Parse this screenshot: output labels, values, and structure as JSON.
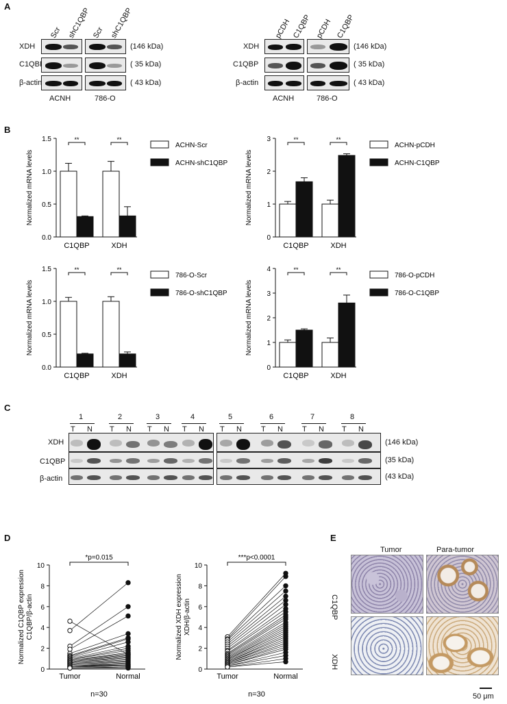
{
  "panels": {
    "A": "A",
    "B": "B",
    "C": "C",
    "D": "D",
    "E": "E"
  },
  "panelA": {
    "left": {
      "lanes": [
        "Scr",
        "shC1QBP",
        "Scr",
        "shC1QBP"
      ],
      "rows": [
        "XDH",
        "C1QBP",
        "β-actin"
      ],
      "sizes": [
        "(146 kDa)",
        "( 35 kDa)",
        "( 43 kDa)"
      ],
      "cells": [
        "ACNH",
        "786-O"
      ]
    },
    "right": {
      "lanes": [
        "pCDH",
        "C1QBP",
        "pCDH",
        "C1QBP"
      ],
      "rows": [
        "XDH",
        "C1QBP",
        "β-actin"
      ],
      "sizes": [
        "(146 kDa)",
        "( 35 kDa)",
        "( 43 kDa)"
      ],
      "cells": [
        "ACNH",
        "786-O"
      ]
    }
  },
  "chart_data": [
    {
      "type": "bar",
      "panel": "B",
      "ylabel": "Normalized mRNA levels",
      "categories": [
        "C1QBP",
        "XDH"
      ],
      "ylim": [
        0,
        1.5
      ],
      "yticks": [
        "0.0",
        "0.5",
        "1.0",
        "1.5"
      ],
      "series": [
        {
          "name": "ACHN-Scr",
          "values": [
            1.0,
            1.0
          ],
          "err": [
            0.12,
            0.15
          ]
        },
        {
          "name": "ACHN-shC1QBP",
          "values": [
            0.31,
            0.32
          ],
          "err": [
            0.01,
            0.14
          ]
        }
      ],
      "sig": [
        "**",
        "**"
      ]
    },
    {
      "type": "bar",
      "panel": "B",
      "ylabel": "Normalized mRNA levels",
      "categories": [
        "C1QBP",
        "XDH"
      ],
      "ylim": [
        0,
        3
      ],
      "yticks": [
        "0",
        "1",
        "2",
        "3"
      ],
      "series": [
        {
          "name": "ACHN-pCDH",
          "values": [
            1.0,
            1.0
          ],
          "err": [
            0.08,
            0.12
          ]
        },
        {
          "name": "ACHN-C1QBP",
          "values": [
            1.68,
            2.48
          ],
          "err": [
            0.12,
            0.05
          ]
        }
      ],
      "sig": [
        "**",
        "**"
      ]
    },
    {
      "type": "bar",
      "panel": "B",
      "ylabel": "Normalized mRNA levels",
      "categories": [
        "C1QBP",
        "XDH"
      ],
      "ylim": [
        0,
        1.5
      ],
      "yticks": [
        "0.0",
        "0.5",
        "1.0",
        "1.5"
      ],
      "series": [
        {
          "name": "786-O-Scr",
          "values": [
            1.0,
            1.0
          ],
          "err": [
            0.06,
            0.07
          ]
        },
        {
          "name": "786-O-shC1QBP",
          "values": [
            0.2,
            0.2
          ],
          "err": [
            0.01,
            0.03
          ]
        }
      ],
      "sig": [
        "**",
        "**"
      ]
    },
    {
      "type": "bar",
      "panel": "B",
      "ylabel": "Normalized mRNA levels",
      "categories": [
        "C1QBP",
        "XDH"
      ],
      "ylim": [
        0,
        4
      ],
      "yticks": [
        "0",
        "1",
        "2",
        "3",
        "4"
      ],
      "series": [
        {
          "name": "786-O-pCDH",
          "values": [
            1.0,
            1.0
          ],
          "err": [
            0.1,
            0.18
          ]
        },
        {
          "name": "786-O-C1QBP",
          "values": [
            1.5,
            2.6
          ],
          "err": [
            0.05,
            0.32
          ]
        }
      ],
      "sig": [
        "**",
        "**"
      ]
    },
    {
      "type": "scatter",
      "panel": "D",
      "ylabel": "Normalized C1QBP expression\nC1QBP/β-actin",
      "categories": [
        "Tumor",
        "Normal"
      ],
      "ylim": [
        0,
        10
      ],
      "yticks": [
        "0",
        "2",
        "4",
        "6",
        "8",
        "10"
      ],
      "annotation": "*p=0.015",
      "n_label": "n=30",
      "pairs": [
        [
          4.6,
          1.4
        ],
        [
          3.7,
          8.3
        ],
        [
          2.2,
          6.0
        ],
        [
          1.9,
          5.1
        ],
        [
          1.5,
          3.4
        ],
        [
          1.3,
          3.0
        ],
        [
          1.2,
          2.9
        ],
        [
          1.1,
          2.6
        ],
        [
          1.0,
          2.2
        ],
        [
          0.9,
          2.0
        ],
        [
          0.9,
          1.8
        ],
        [
          0.8,
          1.6
        ],
        [
          0.8,
          1.5
        ],
        [
          0.7,
          1.4
        ],
        [
          0.7,
          1.3
        ],
        [
          0.6,
          1.2
        ],
        [
          0.6,
          1.1
        ],
        [
          0.5,
          1.0
        ],
        [
          0.5,
          0.9
        ],
        [
          0.4,
          0.8
        ],
        [
          0.4,
          0.7
        ],
        [
          0.3,
          0.6
        ],
        [
          0.3,
          0.5
        ],
        [
          0.3,
          0.4
        ],
        [
          0.2,
          0.4
        ],
        [
          0.2,
          0.3
        ],
        [
          0.2,
          0.3
        ],
        [
          0.1,
          0.2
        ],
        [
          0.1,
          0.2
        ],
        [
          0.1,
          0.1
        ]
      ]
    },
    {
      "type": "scatter",
      "panel": "D",
      "ylabel": "Normalized XDH expression\nXDH/β-actin",
      "categories": [
        "Tumor",
        "Normal"
      ],
      "ylim": [
        0,
        10
      ],
      "yticks": [
        "0",
        "2",
        "4",
        "6",
        "8",
        "10"
      ],
      "annotation": "***p<0.0001",
      "n_label": "n=30",
      "pairs": [
        [
          3.1,
          9.2
        ],
        [
          2.9,
          8.9
        ],
        [
          2.8,
          8.0
        ],
        [
          2.6,
          7.5
        ],
        [
          2.4,
          7.0
        ],
        [
          2.2,
          6.6
        ],
        [
          2.0,
          6.2
        ],
        [
          1.8,
          5.8
        ],
        [
          1.7,
          5.5
        ],
        [
          1.5,
          5.2
        ],
        [
          1.4,
          5.0
        ],
        [
          1.3,
          4.8
        ],
        [
          1.2,
          4.5
        ],
        [
          1.1,
          4.3
        ],
        [
          1.0,
          4.1
        ],
        [
          0.9,
          3.9
        ],
        [
          0.9,
          3.7
        ],
        [
          0.8,
          3.5
        ],
        [
          0.7,
          3.3
        ],
        [
          0.7,
          3.1
        ],
        [
          0.6,
          2.9
        ],
        [
          0.6,
          2.7
        ],
        [
          0.5,
          2.5
        ],
        [
          0.5,
          2.3
        ],
        [
          0.4,
          2.1
        ],
        [
          0.4,
          1.9
        ],
        [
          0.3,
          1.6
        ],
        [
          0.3,
          1.3
        ],
        [
          0.2,
          1.0
        ],
        [
          0.2,
          0.7
        ]
      ]
    }
  ],
  "panelC": {
    "pairs": [
      "1",
      "2",
      "3",
      "4",
      "5",
      "6",
      "7",
      "8"
    ],
    "tn": [
      "T",
      "N"
    ],
    "rows": [
      "XDH",
      "C1QBP",
      "β-actin"
    ],
    "sizes": [
      "(146 kDa)",
      "(35 kDa)",
      "(43 kDa)"
    ]
  },
  "panelE": {
    "cols": [
      "Tumor",
      "Para-tumor"
    ],
    "rows": [
      "C1QBP",
      "XDH"
    ],
    "scale": "50 μm"
  }
}
